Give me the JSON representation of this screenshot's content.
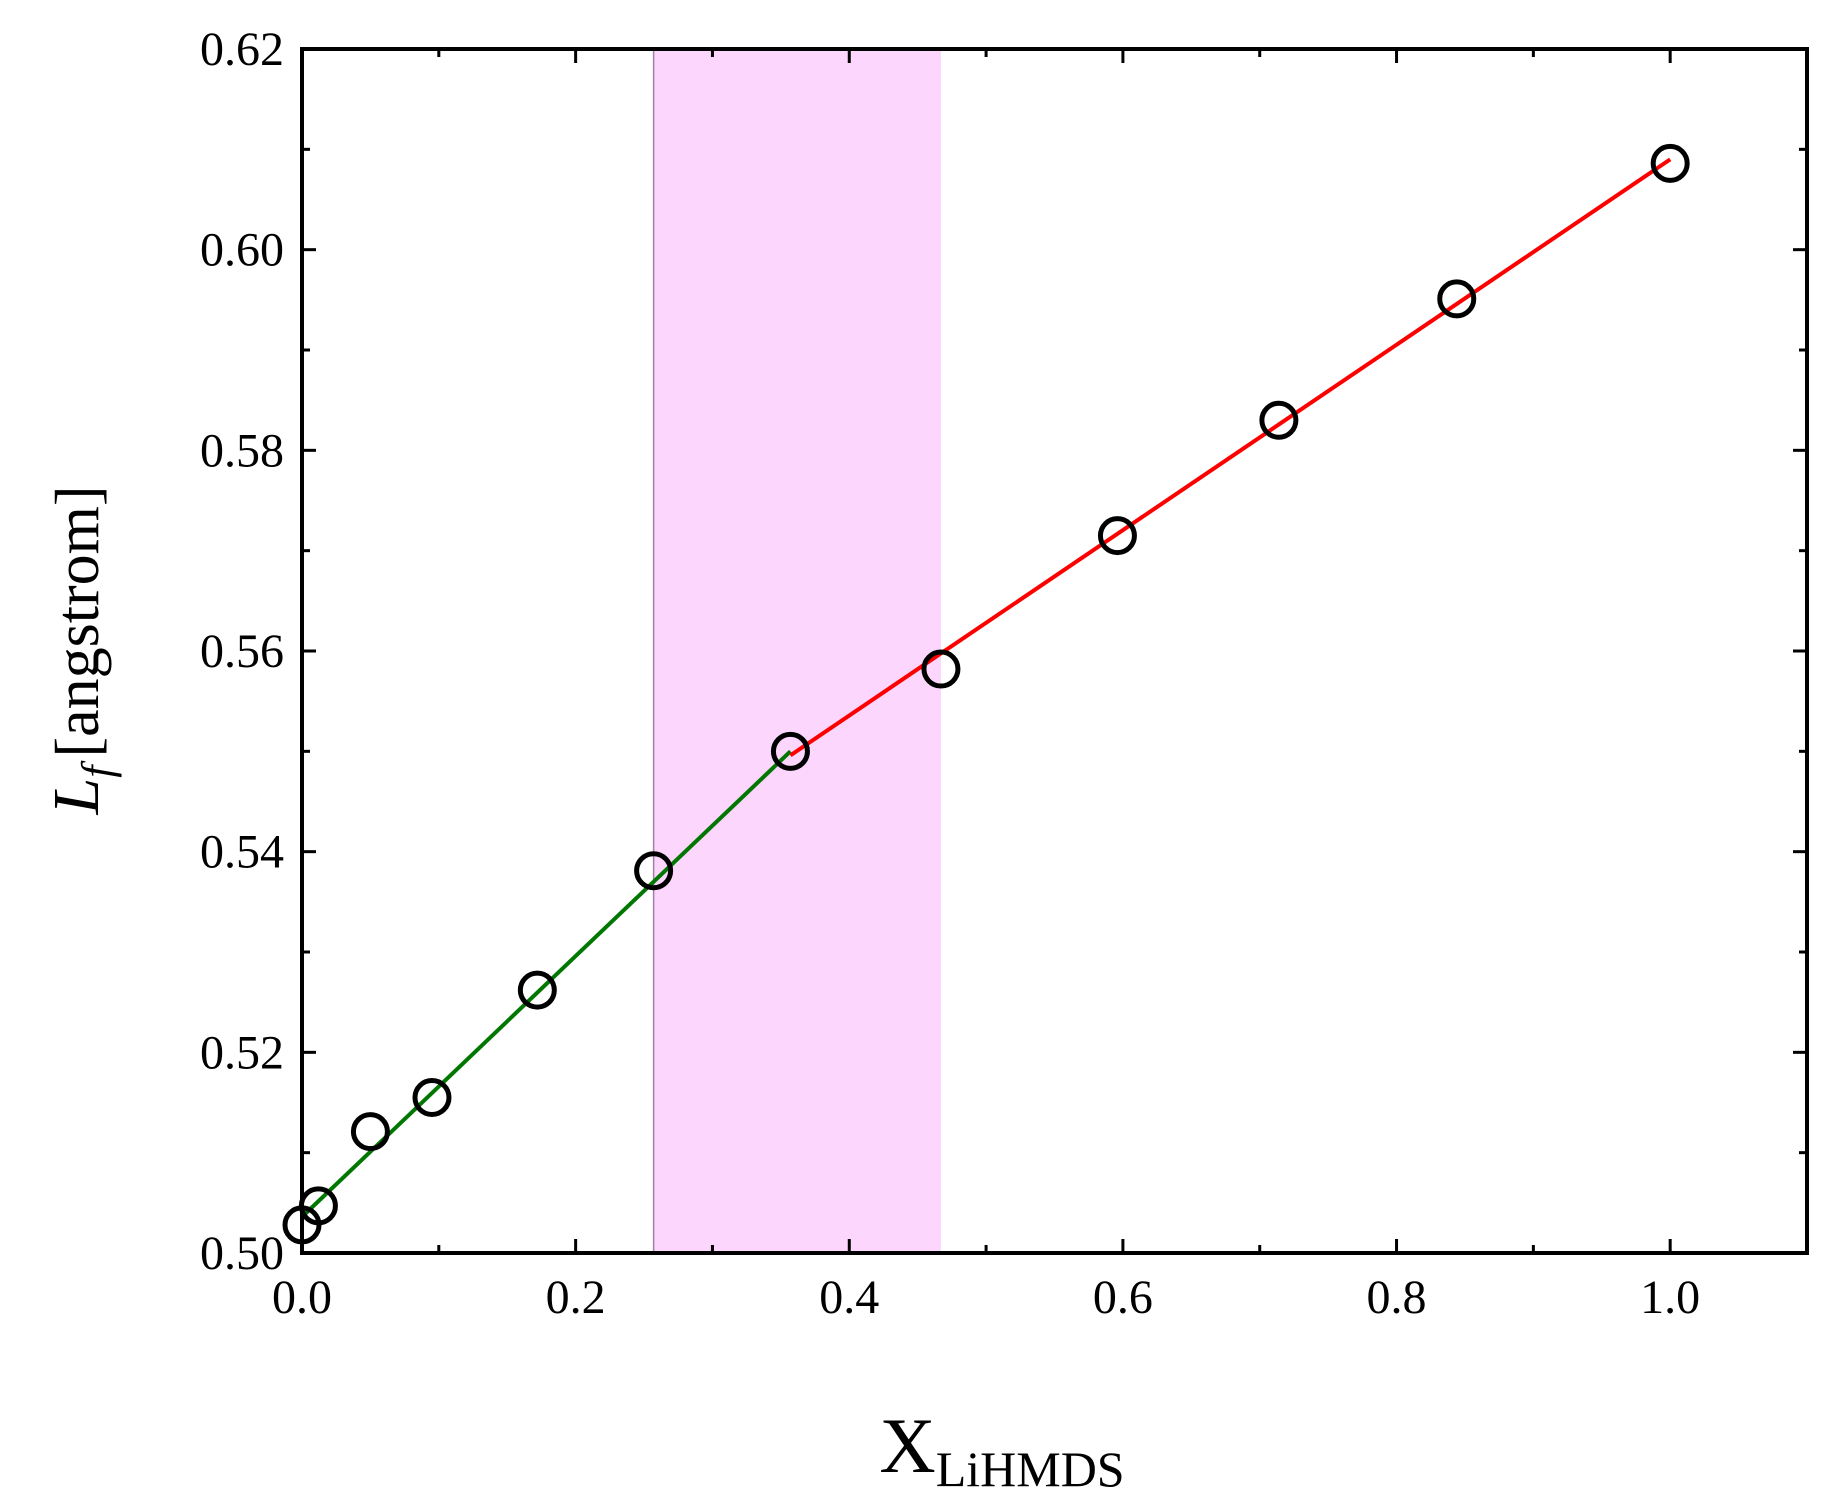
{
  "chart_data": {
    "type": "scatter",
    "xlabel": {
      "main": "X",
      "sub": "LiHMDS"
    },
    "ylabel": {
      "symbol": "L",
      "sub": "f",
      "unit": "[angstrom]"
    },
    "xlim": [
      0.0,
      1.1
    ],
    "ylim": [
      0.5,
      0.62
    ],
    "x_ticks": [
      "0.0",
      "0.2",
      "0.4",
      "0.6",
      "0.8",
      "1.0"
    ],
    "x_tick_values": [
      0.0,
      0.2,
      0.4,
      0.6,
      0.8,
      1.0
    ],
    "y_ticks": [
      "0.50",
      "0.52",
      "0.54",
      "0.56",
      "0.58",
      "0.60",
      "0.62"
    ],
    "y_tick_values": [
      0.5,
      0.52,
      0.54,
      0.56,
      0.58,
      0.6,
      0.62
    ],
    "grid": false,
    "shaded_region": {
      "x": [
        0.257,
        0.467
      ],
      "color": "#fcd6fc"
    },
    "series": [
      {
        "marker": "open-circle",
        "color": "#000000",
        "x": [
          0.0,
          0.012,
          0.05,
          0.095,
          0.172,
          0.257,
          0.357,
          0.467,
          0.596,
          0.714,
          0.844,
          1.0
        ],
        "y": [
          0.5028,
          0.5047,
          0.5121,
          0.5155,
          0.5262,
          0.5381,
          0.55,
          0.5582,
          0.5715,
          0.583,
          0.5951,
          0.6086
        ]
      }
    ],
    "fit_lines": [
      {
        "color": "#007700",
        "x": [
          0.0,
          0.357
        ],
        "y": [
          0.5036,
          0.55
        ]
      },
      {
        "color": "#ff0000",
        "x": [
          0.357,
          1.0
        ],
        "y": [
          0.5496,
          0.609
        ]
      }
    ]
  }
}
